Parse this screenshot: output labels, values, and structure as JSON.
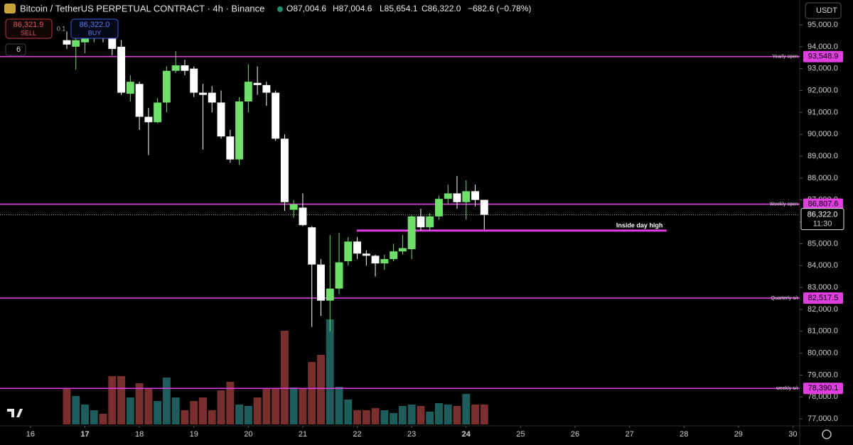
{
  "header": {
    "title": "Bitcoin / TetherUS PERPETUAL CONTRACT · 4h · Binance",
    "open": "O87,004.6",
    "high": "H87,004.6",
    "low": "L85,654.1",
    "close": "C86,322.0",
    "change": "−682.6 (−0.78%)",
    "sell_price": "86,321.9",
    "sell": "SELL",
    "size": "0.1",
    "buy_price": "86,322.0",
    "buy": "BUY",
    "indicators": "6",
    "currency": "USDT"
  },
  "chart_data": {
    "type": "candlestick",
    "x": [
      16.667,
      16.833,
      17,
      17.167,
      17.333,
      17.5,
      17.667,
      17.833,
      18,
      18.167,
      18.333,
      18.5,
      18.667,
      18.833,
      19,
      19.167,
      19.333,
      19.5,
      19.667,
      19.833,
      20,
      20.167,
      20.333,
      20.5,
      20.667,
      20.833,
      21,
      21.167,
      21.333,
      21.5,
      21.667,
      21.833,
      22,
      22.167,
      22.333,
      22.5,
      22.667,
      22.833,
      23,
      23.167,
      23.333,
      23.5,
      23.667,
      23.833,
      24,
      24.167,
      24.333
    ],
    "open": [
      94300,
      94000,
      94200,
      94500,
      94700,
      94400,
      94000,
      91850,
      92300,
      90800,
      90550,
      91450,
      92900,
      93150,
      93000,
      91900,
      91900,
      91450,
      89900,
      88850,
      91500,
      92350,
      92250,
      91900,
      89800,
      86550,
      86650,
      85750,
      84050,
      82400,
      82950,
      84200,
      85100,
      84550,
      84450,
      84100,
      84300,
      84650,
      84750,
      86250,
      85750,
      86250,
      87050,
      87300,
      86900,
      87400,
      87004.6
    ],
    "high": [
      94700,
      94600,
      94900,
      94900,
      95000,
      94800,
      94300,
      92700,
      92400,
      91200,
      91650,
      93100,
      93800,
      93400,
      93100,
      92300,
      92200,
      92000,
      90200,
      91700,
      93200,
      93100,
      92400,
      92000,
      90000,
      87000,
      87300,
      85800,
      84300,
      85400,
      85500,
      85300,
      85300,
      84700,
      84500,
      84500,
      85000,
      85400,
      86300,
      86600,
      86400,
      87200,
      87700,
      88100,
      87900,
      87700,
      87004.6
    ],
    "low": [
      93900,
      92950,
      93700,
      94200,
      94200,
      93600,
      91800,
      91500,
      90200,
      89050,
      90500,
      91000,
      92800,
      92700,
      91700,
      89300,
      91000,
      89800,
      88700,
      88600,
      91000,
      91800,
      91300,
      89700,
      86500,
      86200,
      85800,
      81200,
      81700,
      81000,
      82700,
      84000,
      84300,
      84000,
      83500,
      83800,
      84200,
      84500,
      84300,
      85600,
      85600,
      86100,
      86800,
      86600,
      86100,
      86700,
      85654.1
    ],
    "close": [
      94100,
      94300,
      94500,
      94700,
      94400,
      93900,
      91900,
      92400,
      90800,
      90550,
      91450,
      92900,
      93150,
      92900,
      91900,
      91800,
      91450,
      89900,
      88850,
      91500,
      92400,
      92250,
      91900,
      89800,
      86900,
      86800,
      85850,
      84050,
      82400,
      82950,
      84150,
      85100,
      84550,
      84450,
      84100,
      84300,
      84650,
      84800,
      86250,
      85750,
      86250,
      87050,
      87300,
      86900,
      87400,
      87000,
      86322.0
    ],
    "volume": [
      50,
      40,
      28,
      20,
      15,
      68,
      68,
      38,
      58,
      50,
      33,
      66,
      38,
      20,
      33,
      38,
      20,
      48,
      60,
      28,
      26,
      38,
      50,
      50,
      132,
      52,
      50,
      88,
      98,
      148,
      53,
      35,
      20,
      20,
      23,
      20,
      16,
      26,
      28,
      26,
      18,
      30,
      28,
      26,
      43,
      28,
      28
    ],
    "up_color": "#6ee06a",
    "down_color": "#ffffff",
    "up_volume_color": "#1f5c5c",
    "down_volume_color": "#7a2f2f",
    "level_color": "#e03ee0",
    "xlim": [
      15.44,
      30.125
    ],
    "ylim": [
      76680,
      96135
    ],
    "volume_lim": [
      0,
      600
    ],
    "xticks": [
      16,
      17,
      18,
      19,
      20,
      21,
      22,
      23,
      24,
      25,
      26,
      27,
      28,
      29,
      30
    ],
    "yticks": [
      {
        "value": 77000,
        "label": "77,000.0"
      },
      {
        "value": 78000,
        "label": "78,000.0"
      },
      {
        "value": 79000,
        "label": "79,000.0"
      },
      {
        "value": 80000,
        "label": "80,000.0"
      },
      {
        "value": 81000,
        "label": "81,000.0"
      },
      {
        "value": 82000,
        "label": "82,000.0"
      },
      {
        "value": 83000,
        "label": "83,000.0"
      },
      {
        "value": 84000,
        "label": "84,000.0"
      },
      {
        "value": 85000,
        "label": "85,000.0"
      },
      {
        "value": 86000,
        "label": "86,000.0"
      },
      {
        "value": 87000,
        "label": "87,000.0"
      },
      {
        "value": 88000,
        "label": "88,000.0"
      },
      {
        "value": 89000,
        "label": "89,000.0"
      },
      {
        "value": 90000,
        "label": "90,000.0"
      },
      {
        "value": 91000,
        "label": "91,000.0"
      },
      {
        "value": 92000,
        "label": "92,000.0"
      },
      {
        "value": 93000,
        "label": "93,000.0"
      },
      {
        "value": 94000,
        "label": "94,000.0"
      },
      {
        "value": 95000,
        "label": "95,000.0"
      }
    ],
    "levels": [
      {
        "label": "Yearly open",
        "value": 93548.9,
        "value_label": "93,548.9"
      },
      {
        "label": "Weekly open",
        "value": 86807.6,
        "value_label": "86,807.6"
      },
      {
        "label": "Quarterly s/r",
        "value": 82517.5,
        "value_label": "82,517.5"
      },
      {
        "label": "weekly s/r",
        "value": 78390.1,
        "value_label": "78,390.1"
      }
    ],
    "segment": {
      "label": "Inside day high",
      "value": 85600,
      "x": [
        21.99,
        27.68
      ]
    },
    "current_price": {
      "value": 86322.0,
      "label": "86,322.0",
      "countdown": "11:30"
    }
  }
}
